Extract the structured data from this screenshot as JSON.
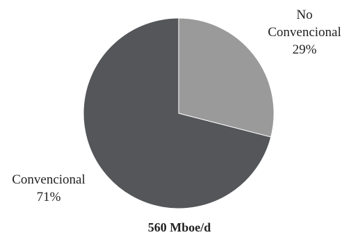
{
  "chart_data": {
    "type": "pie",
    "categories": [
      "No Convencional",
      "Convencional"
    ],
    "values": [
      29,
      71
    ],
    "unit": "%",
    "colors": [
      "#9a9a9a",
      "#545659"
    ],
    "labels": [
      {
        "name_lines": [
          "No",
          "Convencional"
        ],
        "value_label": "29%"
      },
      {
        "name_lines": [
          "Convencional"
        ],
        "value_label": "71%"
      }
    ],
    "total_label": "560 Mboe/d",
    "legend": "none"
  }
}
